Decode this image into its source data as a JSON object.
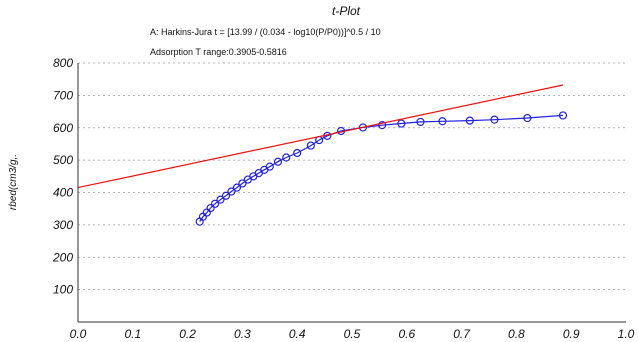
{
  "chart_data": {
    "type": "line",
    "title": "t-Plot",
    "annotations": [
      "A: Harkins-Jura t = [13.99 / (0.034 - log10(P/P0))]^0.5 / 10",
      "Adsorption T range:0.3905-0.5816"
    ],
    "xlabel": "",
    "ylabel": "rbed(cm3/g,.",
    "xlim": [
      0.0,
      1.0
    ],
    "ylim": [
      0,
      800
    ],
    "x_ticks": [
      "0.0",
      "0.1",
      "0.2",
      "0.3",
      "0.4",
      "0.5",
      "0.6",
      "0.7",
      "0.8",
      "0.9",
      "1.0"
    ],
    "y_ticks": [
      "100",
      "200",
      "300",
      "400",
      "500",
      "600",
      "700",
      "800"
    ],
    "grid": "horizontal-dashed",
    "legend": "none",
    "series": [
      {
        "kind": "line-markers",
        "color": "#2222dd",
        "marker": "open-circle",
        "x": [
          0.222,
          0.228,
          0.235,
          0.242,
          0.25,
          0.26,
          0.27,
          0.28,
          0.29,
          0.3,
          0.31,
          0.32,
          0.33,
          0.34,
          0.35,
          0.365,
          0.38,
          0.4,
          0.425,
          0.44,
          0.455,
          0.48,
          0.52,
          0.555,
          0.59,
          0.625,
          0.665,
          0.715,
          0.76,
          0.82,
          0.885
        ],
        "y": [
          310,
          325,
          338,
          352,
          365,
          378,
          390,
          403,
          415,
          428,
          440,
          450,
          460,
          470,
          480,
          495,
          508,
          522,
          545,
          562,
          575,
          590,
          601,
          608,
          613,
          618,
          620,
          622,
          625,
          630,
          638
        ]
      },
      {
        "kind": "line",
        "color": "#ee1111",
        "x": [
          0.0,
          0.885
        ],
        "y": [
          415,
          732
        ]
      }
    ]
  }
}
